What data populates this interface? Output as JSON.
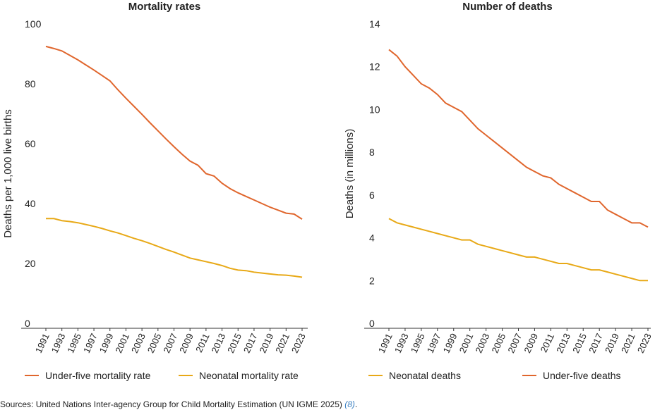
{
  "chart_data": [
    {
      "type": "line",
      "title": "Mortality rates",
      "y_label": "Deaths per 1,000 live births",
      "x": [
        1991,
        1992,
        1993,
        1994,
        1995,
        1996,
        1997,
        1998,
        1999,
        2000,
        2001,
        2002,
        2003,
        2004,
        2005,
        2006,
        2007,
        2008,
        2009,
        2010,
        2011,
        2012,
        2013,
        2014,
        2015,
        2016,
        2017,
        2018,
        2019,
        2020,
        2021,
        2022,
        2023
      ],
      "xlim": [
        1991,
        2023
      ],
      "xticks": [
        1991,
        1993,
        1995,
        1997,
        1999,
        2001,
        2003,
        2005,
        2007,
        2009,
        2011,
        2013,
        2015,
        2017,
        2019,
        2021,
        2023
      ],
      "ylim": [
        0,
        100
      ],
      "yticks": [
        0,
        20,
        40,
        60,
        80,
        100
      ],
      "series": [
        {
          "name": "Under-five mortality rate",
          "color": "#e0662d",
          "values": [
            92.5,
            91.8,
            91.0,
            89.5,
            88.0,
            86.3,
            84.6,
            82.8,
            81.0,
            78.0,
            75.2,
            72.5,
            69.8,
            67.0,
            64.3,
            61.6,
            59.0,
            56.5,
            54.2,
            52.8,
            50.0,
            49.2,
            46.8,
            45.0,
            43.6,
            42.4,
            41.2,
            40.0,
            38.8,
            37.8,
            36.8,
            36.5,
            34.8
          ]
        },
        {
          "name": "Neonatal mortality rate",
          "color": "#e8a917",
          "values": [
            35.0,
            35.0,
            34.3,
            34.0,
            33.6,
            33.0,
            32.4,
            31.7,
            30.9,
            30.2,
            29.3,
            28.4,
            27.6,
            26.7,
            25.7,
            24.7,
            23.8,
            22.8,
            21.8,
            21.2,
            20.6,
            20.0,
            19.3,
            18.4,
            17.8,
            17.6,
            17.1,
            16.8,
            16.5,
            16.2,
            16.1,
            15.8,
            15.4
          ]
        }
      ]
    },
    {
      "type": "line",
      "title": "Number of deaths",
      "y_label": "Deaths (in millions)",
      "x": [
        1991,
        1992,
        1993,
        1994,
        1995,
        1996,
        1997,
        1998,
        1999,
        2000,
        2001,
        2002,
        2003,
        2004,
        2005,
        2006,
        2007,
        2008,
        2009,
        2010,
        2011,
        2012,
        2013,
        2014,
        2015,
        2016,
        2017,
        2018,
        2019,
        2020,
        2021,
        2022,
        2023
      ],
      "xlim": [
        1991,
        2023
      ],
      "xticks": [
        1991,
        1993,
        1995,
        1997,
        1999,
        2001,
        2003,
        2005,
        2007,
        2009,
        2011,
        2013,
        2015,
        2017,
        2019,
        2021,
        2023
      ],
      "ylim": [
        0,
        14
      ],
      "yticks": [
        0,
        2,
        4,
        6,
        8,
        10,
        12,
        14
      ],
      "series": [
        {
          "name": "Neonatal deaths",
          "color": "#e8a917",
          "values": [
            4.9,
            4.7,
            4.6,
            4.5,
            4.4,
            4.3,
            4.2,
            4.1,
            4.0,
            3.9,
            3.9,
            3.7,
            3.6,
            3.5,
            3.4,
            3.3,
            3.2,
            3.1,
            3.1,
            3.0,
            2.9,
            2.8,
            2.8,
            2.7,
            2.6,
            2.5,
            2.5,
            2.4,
            2.3,
            2.2,
            2.1,
            2.0,
            2.0
          ]
        },
        {
          "name": "Under-five deaths",
          "color": "#e0662d",
          "values": [
            12.8,
            12.5,
            12.0,
            11.6,
            11.2,
            11.0,
            10.7,
            10.3,
            10.1,
            9.9,
            9.5,
            9.1,
            8.8,
            8.5,
            8.2,
            7.9,
            7.6,
            7.3,
            7.1,
            6.9,
            6.8,
            6.5,
            6.3,
            6.1,
            5.9,
            5.7,
            5.7,
            5.3,
            5.1,
            4.9,
            4.7,
            4.7,
            4.5
          ]
        }
      ]
    }
  ],
  "source": "Sources: United Nations Inter-agency Group for Child Mortality Estimation (UN IGME 2025)",
  "source_ref": "(8)",
  "source_end": "."
}
